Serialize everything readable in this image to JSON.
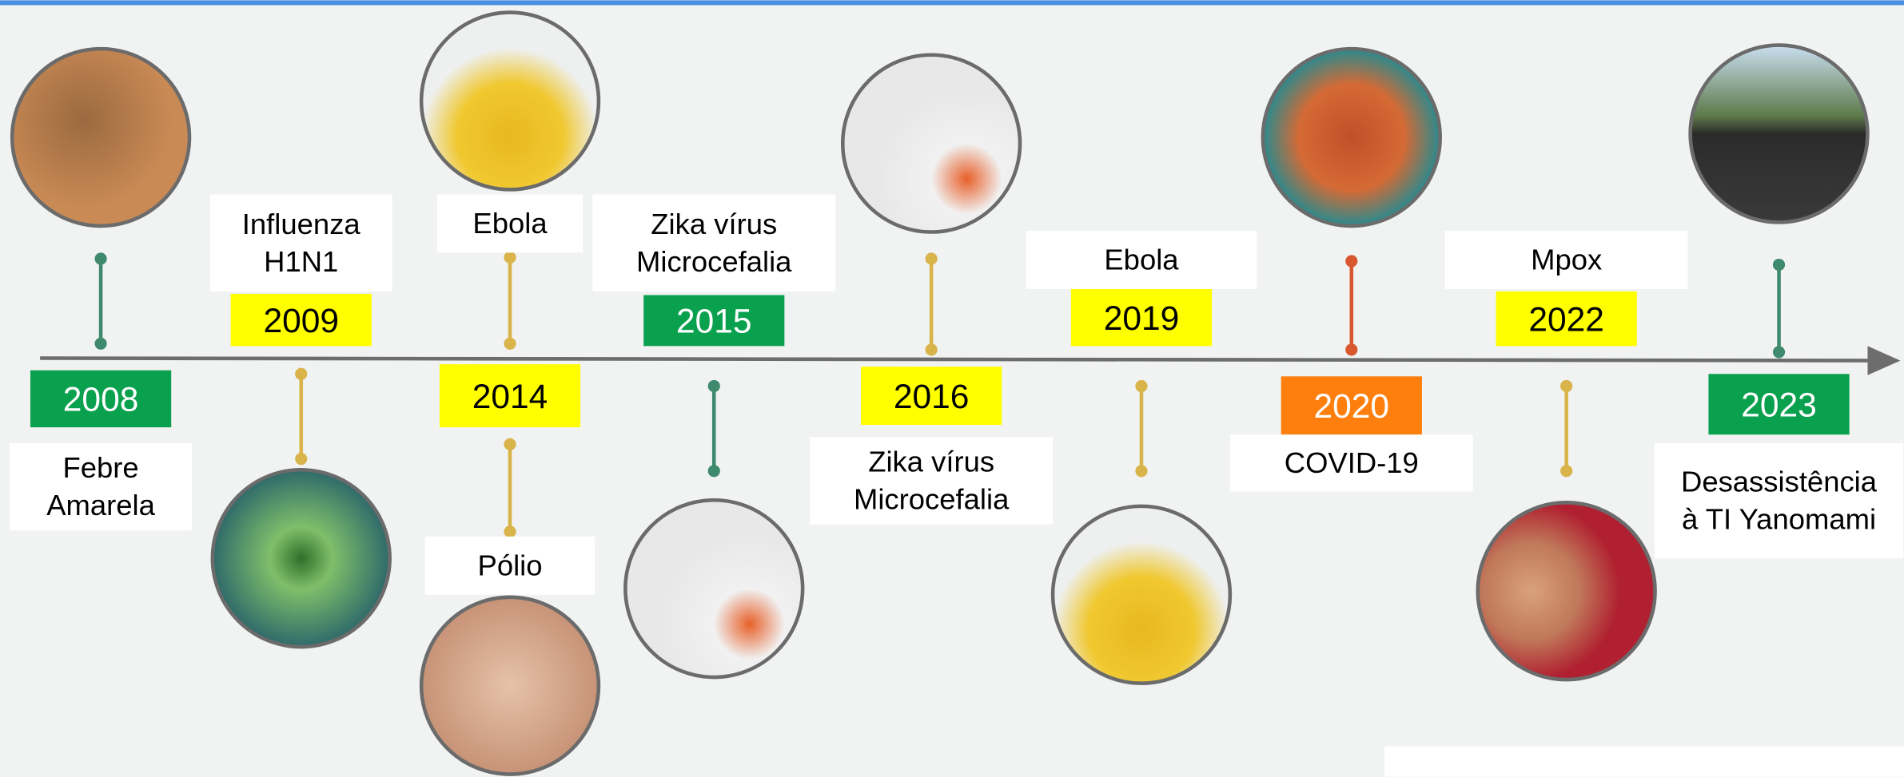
{
  "events": [
    {
      "year": "2008",
      "color": "#0aa14e",
      "labels": [
        [
          "Febre",
          "Amarela"
        ]
      ]
    },
    {
      "year": "2009",
      "color": "#ffff00",
      "labels": [
        [
          "Influenza",
          "H1N1"
        ]
      ]
    },
    {
      "year": "2014",
      "color": "#ffff00",
      "labels": [
        [
          "Ebola"
        ],
        [
          "Pólio"
        ]
      ]
    },
    {
      "year": "2015",
      "color": "#0aa14e",
      "labels": [
        [
          "Zika vírus",
          "Microcefalia"
        ]
      ]
    },
    {
      "year": "2016",
      "color": "#ffff00",
      "labels": [
        [
          "Zika vírus",
          "Microcefalia"
        ]
      ]
    },
    {
      "year": "2019",
      "color": "#ffff00",
      "labels": [
        [
          "Ebola"
        ]
      ]
    },
    {
      "year": "2020",
      "color": "#ff7f0e",
      "labels": [
        [
          "COVID-19"
        ]
      ]
    },
    {
      "year": "2022",
      "color": "#ffff00",
      "labels": [
        [
          "Mpox"
        ]
      ]
    },
    {
      "year": "2023",
      "color": "#0aa14e",
      "labels": [
        [
          "Desassistência",
          "à TI Yanomami"
        ]
      ]
    }
  ]
}
